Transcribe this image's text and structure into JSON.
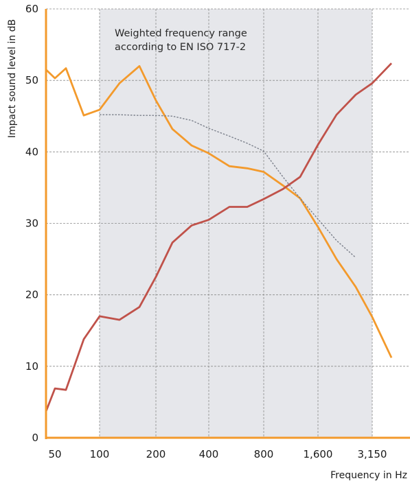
{
  "chart_data": {
    "type": "line",
    "title": "",
    "xlabel": "Frequency in Hz",
    "ylabel": "Impact sound level in dB",
    "ylim": [
      0,
      60
    ],
    "yticks": [
      0,
      10,
      20,
      30,
      40,
      50,
      60
    ],
    "x_scale": "log",
    "x_range_hz": [
      40,
      5000
    ],
    "xtick_labels": [
      "50",
      "100",
      "200",
      "400",
      "800",
      "1,600",
      "3,150"
    ],
    "xtick_values": [
      50,
      100,
      200,
      400,
      800,
      1600,
      3150
    ],
    "grid": true,
    "shaded_region": {
      "from_hz": 100,
      "to_hz": 3150,
      "label_lines": [
        "Weighted frequency range",
        "according to EN ISO 717-2"
      ]
    },
    "series": [
      {
        "color": "#f39a2c",
        "x": [
          40,
          50,
          63,
          80,
          100,
          125,
          160,
          200,
          250,
          315,
          400,
          500,
          630,
          800,
          1000,
          1250,
          1600,
          2000,
          2500,
          3150,
          4000,
          5000
        ],
        "values": [
          51.5,
          50.3,
          51.7,
          45.1,
          45.9,
          49.6,
          52.0,
          47.2,
          43.2,
          40.9,
          39.8,
          38.0,
          37.7,
          37.2,
          35.3,
          33.5,
          29.5,
          25.0,
          21.1,
          16.9,
          11.2,
          null
        ]
      },
      {
        "color": "#c0524a",
        "x": [
          40,
          50,
          63,
          80,
          100,
          125,
          160,
          200,
          250,
          315,
          400,
          500,
          630,
          800,
          1000,
          1250,
          1600,
          2000,
          2500,
          3150,
          4000,
          5000
        ],
        "values": [
          3.7,
          6.9,
          6.7,
          13.8,
          17.0,
          16.5,
          18.3,
          22.5,
          27.3,
          29.7,
          30.5,
          32.3,
          32.3,
          33.4,
          34.8,
          36.5,
          41.0,
          45.2,
          48.0,
          49.6,
          52.4,
          null
        ]
      },
      {
        "color": "#7a7f8a",
        "style": "dotted",
        "x": [
          100,
          125,
          160,
          200,
          250,
          315,
          400,
          500,
          630,
          800,
          1000,
          1250,
          1600,
          2000,
          2500,
          3150
        ],
        "values": [
          45.2,
          45.2,
          45.1,
          45.1,
          45.0,
          44.4,
          43.3,
          42.2,
          41.2,
          40.1,
          36.5,
          33.5,
          30.6,
          27.6,
          25.2,
          null
        ]
      }
    ]
  }
}
